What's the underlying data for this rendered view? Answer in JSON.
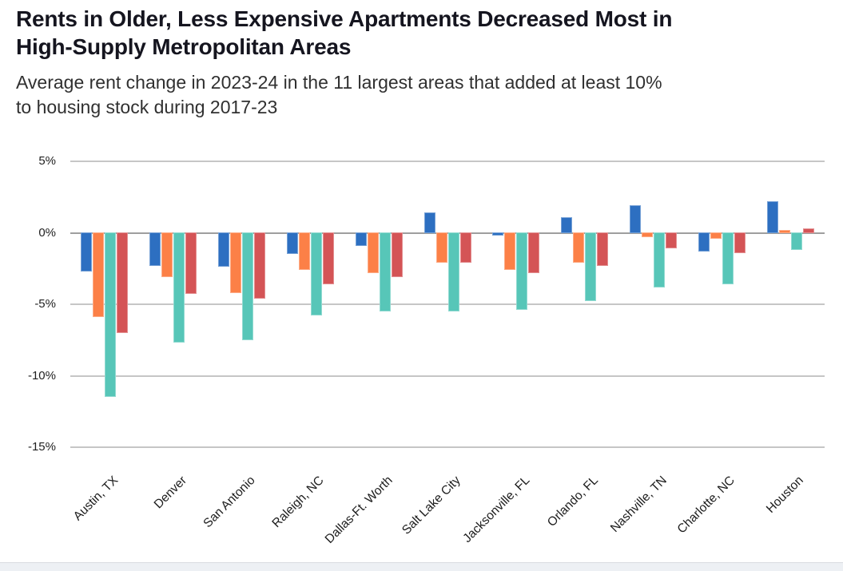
{
  "header": {
    "title_lines": [
      "Rents in Older, Less Expensive Apartments Decreased Most in",
      "High-Supply Metropolitan Areas"
    ],
    "subtitle_lines": [
      "Average rent change in 2023-24 in the 11 largest areas that added at least 10%",
      "to housing stock during 2017-23"
    ]
  },
  "chart_data": {
    "type": "bar",
    "title": "Rents in Older, Less Expensive Apartments Decreased Most in High-Supply Metropolitan Areas",
    "subtitle": "Average rent change in 2023-24 in the 11 largest areas that added at least 10% to housing stock during 2017-23",
    "unit": "%",
    "categories": [
      "Austin, TX",
      "Denver",
      "San Antonio",
      "Raleigh, NC",
      "Dallas-Ft. Worth",
      "Salt Lake City",
      "Jacksonville, FL",
      "Orlando, FL",
      "Nashville, TN",
      "Charlotte, NC",
      "Houston"
    ],
    "series": [
      {
        "name": "blue",
        "color": "#2d6fc1",
        "values": [
          -2.7,
          -2.3,
          -2.4,
          -1.5,
          -0.9,
          1.4,
          -0.2,
          1.1,
          1.9,
          -1.3,
          2.2
        ]
      },
      {
        "name": "orange",
        "color": "#fc8047",
        "values": [
          -5.9,
          -3.1,
          -4.2,
          -2.6,
          -2.8,
          -2.1,
          -2.6,
          -2.1,
          -0.3,
          -0.4,
          0.2
        ]
      },
      {
        "name": "teal",
        "color": "#57c6b8",
        "values": [
          -11.5,
          -7.7,
          -7.5,
          -5.8,
          -5.5,
          -5.5,
          -5.4,
          -4.8,
          -3.8,
          -3.6,
          -1.2
        ]
      },
      {
        "name": "red",
        "color": "#d45456",
        "values": [
          -7.0,
          -4.3,
          -4.6,
          -3.6,
          -3.1,
          -2.1,
          -2.8,
          -2.3,
          -1.1,
          -1.4,
          0.3
        ]
      }
    ],
    "y_ticks": [
      {
        "label": "5%",
        "value": 5
      },
      {
        "label": "0%",
        "value": 0
      },
      {
        "label": "-5%",
        "value": -5
      },
      {
        "label": "-10%",
        "value": -10
      },
      {
        "label": "-15%",
        "value": -15
      }
    ],
    "ylim": [
      -15,
      5
    ],
    "grid": true,
    "legend": "none",
    "xlabel_rotation_deg": -45
  },
  "colors": {
    "gridline": "#c6c6c6",
    "zero_line": "#9e9e9e",
    "footer_strip": "#edf0f4"
  }
}
